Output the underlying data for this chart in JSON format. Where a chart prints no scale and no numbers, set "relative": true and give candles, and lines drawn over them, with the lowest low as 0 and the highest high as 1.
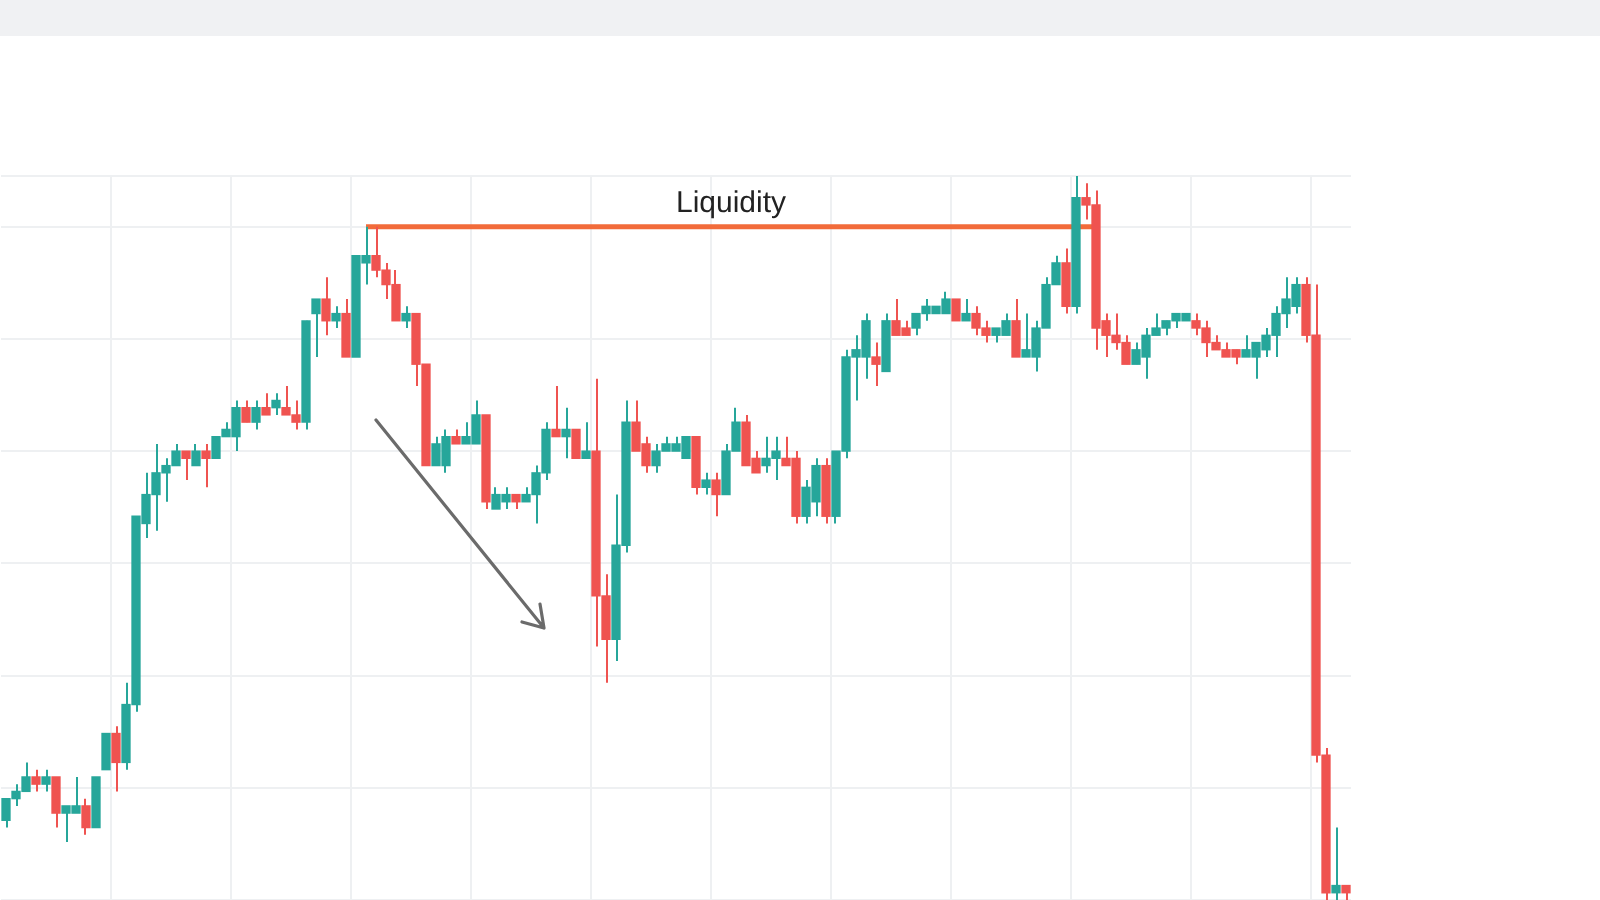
{
  "chart_data": {
    "type": "candlestick",
    "relative": true,
    "grid": true,
    "categories": [
      null,
      null,
      null,
      null,
      null,
      null,
      null,
      null,
      null,
      null,
      null,
      null,
      null,
      null,
      null,
      null,
      null,
      null,
      null,
      null,
      null,
      null,
      null,
      null,
      null,
      null,
      null,
      null,
      null,
      null,
      null,
      null,
      null,
      null,
      null,
      null,
      null,
      null,
      null,
      null,
      null,
      null,
      null,
      null,
      null,
      null,
      null,
      null,
      null,
      null,
      null,
      null,
      null,
      null,
      null,
      null,
      null,
      null,
      null,
      null,
      null,
      null,
      null,
      null,
      null,
      null,
      null,
      null,
      null,
      null,
      null,
      null,
      null,
      null,
      null,
      null,
      null,
      null,
      null,
      null,
      null,
      null,
      null,
      null,
      null,
      null,
      null,
      null,
      null,
      null,
      null,
      null,
      null,
      null,
      null,
      null,
      null,
      null,
      null,
      null,
      null,
      null,
      null,
      null,
      null,
      null,
      null,
      null,
      null,
      null,
      null,
      null,
      null,
      null,
      null,
      null,
      null,
      null,
      null,
      null,
      null,
      null,
      null,
      null,
      null,
      null,
      null,
      null,
      null,
      null,
      null,
      null,
      null,
      null,
      null
    ],
    "ohlc": [
      [
        0.11,
        0.14,
        0.1,
        0.14
      ],
      [
        0.14,
        0.16,
        0.13,
        0.15
      ],
      [
        0.15,
        0.19,
        0.15,
        0.17
      ],
      [
        0.17,
        0.18,
        0.15,
        0.16
      ],
      [
        0.16,
        0.18,
        0.15,
        0.17
      ],
      [
        0.17,
        0.17,
        0.1,
        0.12
      ],
      [
        0.12,
        0.13,
        0.08,
        0.13
      ],
      [
        0.12,
        0.17,
        0.12,
        0.13
      ],
      [
        0.13,
        0.14,
        0.09,
        0.1
      ],
      [
        0.1,
        0.17,
        0.1,
        0.17
      ],
      [
        0.18,
        0.23,
        0.18,
        0.23
      ],
      [
        0.23,
        0.24,
        0.15,
        0.19
      ],
      [
        0.19,
        0.3,
        0.18,
        0.27
      ],
      [
        0.27,
        0.53,
        0.26,
        0.53
      ],
      [
        0.52,
        0.59,
        0.5,
        0.56
      ],
      [
        0.56,
        0.63,
        0.51,
        0.59
      ],
      [
        0.59,
        0.61,
        0.55,
        0.6
      ],
      [
        0.6,
        0.63,
        0.6,
        0.62
      ],
      [
        0.62,
        0.62,
        0.58,
        0.61
      ],
      [
        0.6,
        0.63,
        0.6,
        0.62
      ],
      [
        0.62,
        0.63,
        0.57,
        0.61
      ],
      [
        0.61,
        0.64,
        0.61,
        0.64
      ],
      [
        0.64,
        0.66,
        0.64,
        0.65
      ],
      [
        0.64,
        0.69,
        0.62,
        0.68
      ],
      [
        0.68,
        0.69,
        0.66,
        0.66
      ],
      [
        0.66,
        0.69,
        0.65,
        0.68
      ],
      [
        0.68,
        0.7,
        0.67,
        0.67
      ],
      [
        0.68,
        0.7,
        0.67,
        0.69
      ],
      [
        0.68,
        0.71,
        0.67,
        0.67
      ],
      [
        0.67,
        0.69,
        0.65,
        0.66
      ],
      [
        0.66,
        0.8,
        0.65,
        0.8
      ],
      [
        0.81,
        0.83,
        0.75,
        0.83
      ],
      [
        0.83,
        0.86,
        0.78,
        0.8
      ],
      [
        0.8,
        0.82,
        0.79,
        0.81
      ],
      [
        0.81,
        0.83,
        0.75,
        0.75
      ],
      [
        0.75,
        0.89,
        0.75,
        0.89
      ],
      [
        0.88,
        0.93,
        0.85,
        0.89
      ],
      [
        0.89,
        0.93,
        0.86,
        0.87
      ],
      [
        0.87,
        0.88,
        0.83,
        0.85
      ],
      [
        0.85,
        0.87,
        0.8,
        0.8
      ],
      [
        0.8,
        0.82,
        0.79,
        0.81
      ],
      [
        0.81,
        0.81,
        0.71,
        0.74
      ],
      [
        0.74,
        0.74,
        0.6,
        0.6
      ],
      [
        0.6,
        0.64,
        0.6,
        0.63
      ],
      [
        0.6,
        0.65,
        0.59,
        0.64
      ],
      [
        0.64,
        0.65,
        0.63,
        0.63
      ],
      [
        0.63,
        0.66,
        0.63,
        0.64
      ],
      [
        0.63,
        0.69,
        0.63,
        0.67
      ],
      [
        0.67,
        0.67,
        0.54,
        0.55
      ],
      [
        0.54,
        0.57,
        0.54,
        0.56
      ],
      [
        0.55,
        0.57,
        0.54,
        0.56
      ],
      [
        0.56,
        0.56,
        0.54,
        0.55
      ],
      [
        0.55,
        0.57,
        0.55,
        0.56
      ],
      [
        0.56,
        0.6,
        0.52,
        0.59
      ],
      [
        0.59,
        0.66,
        0.58,
        0.65
      ],
      [
        0.65,
        0.71,
        0.64,
        0.64
      ],
      [
        0.64,
        0.68,
        0.61,
        0.65
      ],
      [
        0.65,
        0.65,
        0.61,
        0.61
      ],
      [
        0.61,
        0.66,
        0.61,
        0.62
      ],
      [
        0.62,
        0.72,
        0.35,
        0.42
      ],
      [
        0.42,
        0.45,
        0.3,
        0.36
      ],
      [
        0.36,
        0.56,
        0.33,
        0.49
      ],
      [
        0.49,
        0.69,
        0.48,
        0.66
      ],
      [
        0.66,
        0.69,
        0.62,
        0.62
      ],
      [
        0.63,
        0.64,
        0.59,
        0.6
      ],
      [
        0.6,
        0.63,
        0.59,
        0.62
      ],
      [
        0.62,
        0.64,
        0.62,
        0.63
      ],
      [
        0.62,
        0.64,
        0.62,
        0.63
      ],
      [
        0.61,
        0.64,
        0.61,
        0.64
      ],
      [
        0.64,
        0.64,
        0.56,
        0.57
      ],
      [
        0.57,
        0.59,
        0.56,
        0.58
      ],
      [
        0.58,
        0.59,
        0.53,
        0.56
      ],
      [
        0.56,
        0.63,
        0.56,
        0.62
      ],
      [
        0.62,
        0.68,
        0.62,
        0.66
      ],
      [
        0.66,
        0.67,
        0.6,
        0.6
      ],
      [
        0.61,
        0.62,
        0.59,
        0.59
      ],
      [
        0.6,
        0.64,
        0.59,
        0.61
      ],
      [
        0.61,
        0.64,
        0.58,
        0.62
      ],
      [
        0.61,
        0.64,
        0.6,
        0.6
      ],
      [
        0.61,
        0.62,
        0.52,
        0.53
      ],
      [
        0.53,
        0.58,
        0.52,
        0.57
      ],
      [
        0.55,
        0.61,
        0.53,
        0.6
      ],
      [
        0.6,
        0.61,
        0.52,
        0.53
      ],
      [
        0.53,
        0.62,
        0.52,
        0.62
      ],
      [
        0.62,
        0.76,
        0.61,
        0.75
      ],
      [
        0.75,
        0.78,
        0.69,
        0.76
      ],
      [
        0.75,
        0.81,
        0.72,
        0.8
      ],
      [
        0.75,
        0.77,
        0.71,
        0.74
      ],
      [
        0.73,
        0.81,
        0.73,
        0.8
      ],
      [
        0.8,
        0.83,
        0.78,
        0.78
      ],
      [
        0.79,
        0.8,
        0.78,
        0.78
      ],
      [
        0.79,
        0.81,
        0.78,
        0.81
      ],
      [
        0.81,
        0.83,
        0.8,
        0.82
      ],
      [
        0.81,
        0.82,
        0.81,
        0.82
      ],
      [
        0.81,
        0.84,
        0.81,
        0.83
      ],
      [
        0.83,
        0.83,
        0.8,
        0.8
      ],
      [
        0.8,
        0.83,
        0.8,
        0.81
      ],
      [
        0.81,
        0.82,
        0.78,
        0.79
      ],
      [
        0.79,
        0.8,
        0.77,
        0.78
      ],
      [
        0.78,
        0.79,
        0.77,
        0.79
      ],
      [
        0.78,
        0.81,
        0.78,
        0.8
      ],
      [
        0.8,
        0.83,
        0.75,
        0.75
      ],
      [
        0.75,
        0.81,
        0.75,
        0.76
      ],
      [
        0.75,
        0.8,
        0.73,
        0.79
      ],
      [
        0.79,
        0.86,
        0.79,
        0.85
      ],
      [
        0.85,
        0.89,
        0.85,
        0.88
      ],
      [
        0.88,
        0.9,
        0.81,
        0.82
      ],
      [
        0.82,
        1.0,
        0.81,
        0.97
      ],
      [
        0.97,
        0.99,
        0.94,
        0.96
      ],
      [
        0.96,
        0.98,
        0.76,
        0.79
      ],
      [
        0.8,
        0.81,
        0.75,
        0.78
      ],
      [
        0.78,
        0.81,
        0.76,
        0.77
      ],
      [
        0.77,
        0.78,
        0.74,
        0.74
      ],
      [
        0.74,
        0.77,
        0.74,
        0.76
      ],
      [
        0.75,
        0.79,
        0.72,
        0.78
      ],
      [
        0.78,
        0.81,
        0.78,
        0.79
      ],
      [
        0.79,
        0.8,
        0.78,
        0.8
      ],
      [
        0.8,
        0.81,
        0.79,
        0.81
      ],
      [
        0.8,
        0.81,
        0.8,
        0.81
      ],
      [
        0.8,
        0.81,
        0.78,
        0.79
      ],
      [
        0.79,
        0.8,
        0.75,
        0.77
      ],
      [
        0.77,
        0.78,
        0.76,
        0.76
      ],
      [
        0.76,
        0.77,
        0.75,
        0.75
      ],
      [
        0.76,
        0.76,
        0.74,
        0.75
      ],
      [
        0.75,
        0.78,
        0.75,
        0.76
      ],
      [
        0.75,
        0.77,
        0.72,
        0.77
      ],
      [
        0.76,
        0.79,
        0.75,
        0.78
      ],
      [
        0.78,
        0.82,
        0.75,
        0.81
      ],
      [
        0.81,
        0.86,
        0.79,
        0.83
      ],
      [
        0.82,
        0.86,
        0.81,
        0.85
      ],
      [
        0.85,
        0.86,
        0.77,
        0.78
      ],
      [
        0.78,
        0.85,
        0.19,
        0.2
      ],
      [
        0.2,
        0.21,
        0,
        0.01
      ],
      [
        0.01,
        0.1,
        0,
        0.02
      ],
      [
        0.02,
        0.02,
        0,
        0.01
      ]
    ],
    "ref_lines": [
      {
        "axis": "y",
        "value": 0.93,
        "label": "Liquidity",
        "color": "#f26b3a"
      }
    ]
  }
}
